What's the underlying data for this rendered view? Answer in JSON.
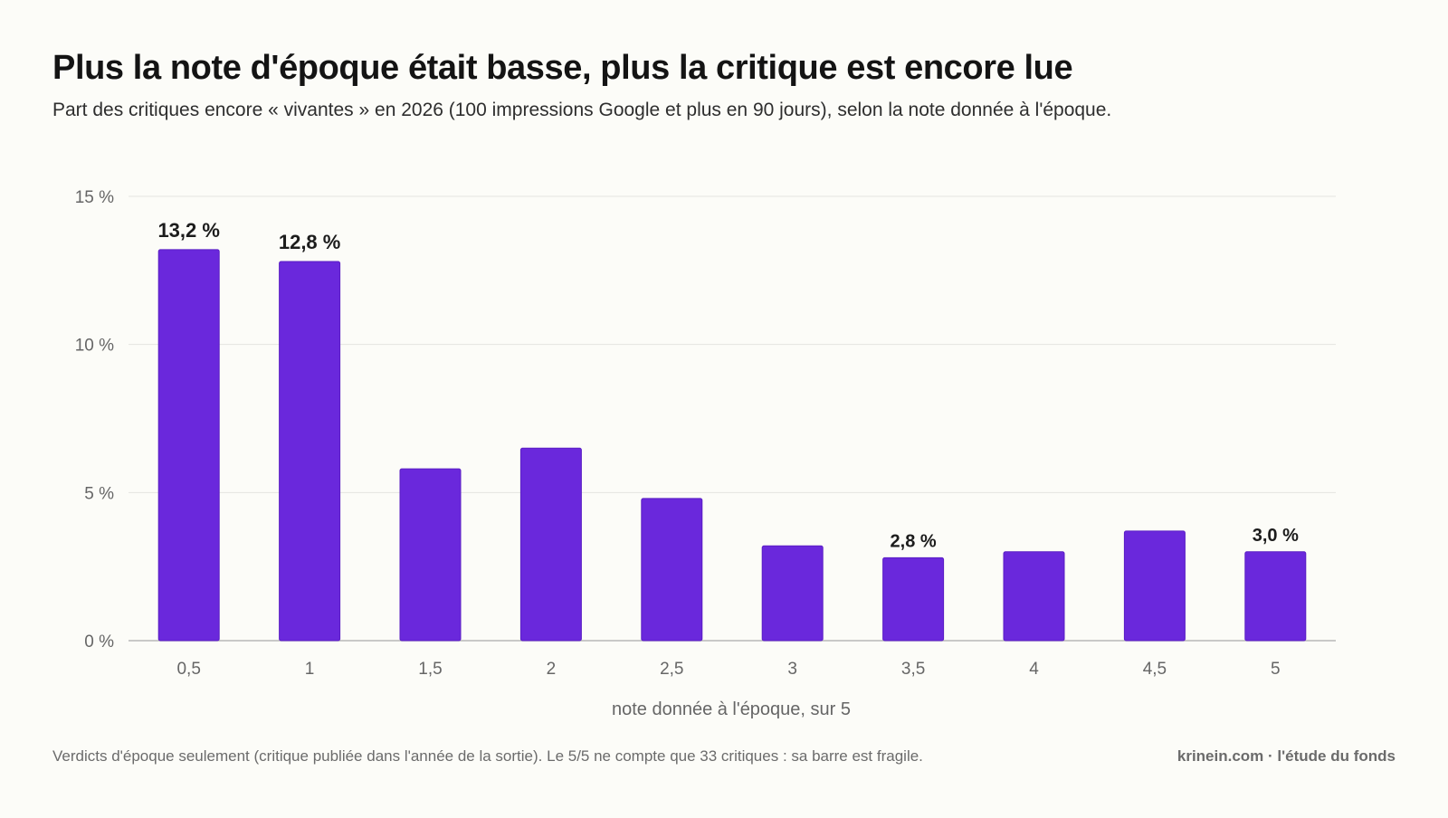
{
  "header": {
    "title": "Plus la note d'époque était basse, plus la critique est encore lue",
    "subtitle": "Part des critiques encore « vivantes » en 2026 (100 impressions Google et plus en 90 jours), selon la note donnée à l'époque."
  },
  "footer": {
    "note": "Verdicts d'époque seulement (critique publiée dans l'année de la sortie). Le 5/5 ne compte que 33 critiques : sa barre est fragile.",
    "source": "krinein.com · l'étude du fonds"
  },
  "colors": {
    "bar": "#6a28dc",
    "bar_outline": "#5a1ec4",
    "grid": "#e4e4e0",
    "baseline": "#b8b8b8",
    "tick_text": "#666666",
    "label_text": "#1c1c1c"
  },
  "chart_data": {
    "type": "bar",
    "categories": [
      "0,5",
      "1",
      "1,5",
      "2",
      "2,5",
      "3",
      "3,5",
      "4",
      "4,5",
      "5"
    ],
    "values": [
      13.2,
      12.8,
      5.8,
      6.5,
      4.8,
      3.2,
      2.8,
      3.0,
      3.7,
      3.0
    ],
    "data_labels": [
      "13,2 %",
      "12,8 %",
      "",
      "",
      "",
      "",
      "2,8 %",
      "",
      "",
      "3,0 %"
    ],
    "y_ticks": [
      0,
      5,
      10,
      15
    ],
    "y_tick_labels": [
      "0 %",
      "5 %",
      "10 %",
      "15 %"
    ],
    "ylim": [
      0,
      15
    ],
    "xlabel": "note donnée à l'époque, sur 5",
    "ylabel": "",
    "grid": true,
    "legend": "none"
  }
}
